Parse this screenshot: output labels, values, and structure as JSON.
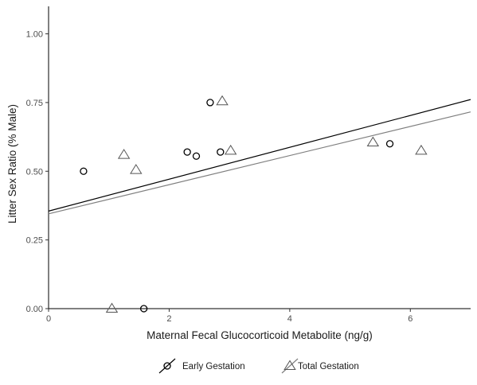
{
  "chart_data": {
    "type": "scatter",
    "title": "",
    "xlabel": "Maternal Fecal Glucocorticoid Metabolite (ng/g)",
    "ylabel": "Litter Sex Ratio (% Male)",
    "xlim": [
      0,
      7
    ],
    "ylim": [
      0,
      1.1
    ],
    "x_ticks": [
      0,
      2,
      4,
      6
    ],
    "x_tick_labels": [
      "0",
      "2",
      "4",
      "6"
    ],
    "y_ticks": [
      0,
      0.25,
      0.5,
      0.75,
      1.0
    ],
    "y_tick_labels": [
      "0.00",
      "0.25",
      "0.50",
      "0.75",
      "1.00"
    ],
    "grid": false,
    "legend_position": "bottom",
    "series": [
      {
        "name": "Early Gestation",
        "marker": "circle",
        "color": "#000000",
        "points": [
          {
            "x": 0.58,
            "y": 0.5
          },
          {
            "x": 1.58,
            "y": 0.0
          },
          {
            "x": 2.3,
            "y": 0.57
          },
          {
            "x": 2.45,
            "y": 0.555
          },
          {
            "x": 2.68,
            "y": 0.75
          },
          {
            "x": 2.85,
            "y": 0.57
          },
          {
            "x": 5.66,
            "y": 0.6
          }
        ],
        "fit_line": {
          "intercept": 0.355,
          "slope": 0.058
        }
      },
      {
        "name": "Total Gestation",
        "marker": "triangle",
        "color": "#000000",
        "fit_color": "#7f7f7f",
        "points": [
          {
            "x": 1.05,
            "y": 0.0
          },
          {
            "x": 1.25,
            "y": 0.56
          },
          {
            "x": 1.45,
            "y": 0.505
          },
          {
            "x": 2.88,
            "y": 0.755
          },
          {
            "x": 3.02,
            "y": 0.575
          },
          {
            "x": 5.38,
            "y": 0.605
          },
          {
            "x": 6.18,
            "y": 0.575
          }
        ],
        "fit_line": {
          "intercept": 0.345,
          "slope": 0.053
        }
      }
    ]
  }
}
